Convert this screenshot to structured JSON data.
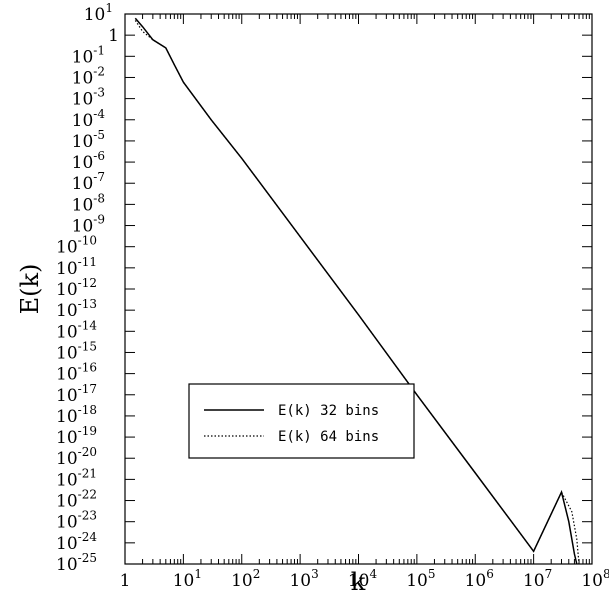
{
  "chart_data": {
    "type": "line",
    "xlabel": "k",
    "ylabel": "E(k)",
    "title": "",
    "xscale": "log",
    "yscale": "log",
    "xlim": [
      1,
      100000000
    ],
    "ylim": [
      1e-25,
      10
    ],
    "x_ticks": [
      {
        "value": 1,
        "base": "1",
        "exp": ""
      },
      {
        "value": 10,
        "base": "10",
        "exp": "1"
      },
      {
        "value": 100,
        "base": "10",
        "exp": "2"
      },
      {
        "value": 1000,
        "base": "10",
        "exp": "3"
      },
      {
        "value": 10000,
        "base": "10",
        "exp": "4"
      },
      {
        "value": 100000,
        "base": "10",
        "exp": "5"
      },
      {
        "value": 1000000,
        "base": "10",
        "exp": "6"
      },
      {
        "value": 10000000,
        "base": "10",
        "exp": "7"
      },
      {
        "value": 100000000,
        "base": "10",
        "exp": "8"
      }
    ],
    "y_ticks": [
      {
        "value": 10,
        "base": "10",
        "exp": "1"
      },
      {
        "value": 1,
        "base": "1",
        "exp": ""
      },
      {
        "value": 0.1,
        "base": "10",
        "exp": "-1"
      },
      {
        "value": 0.01,
        "base": "10",
        "exp": "-2"
      },
      {
        "value": 0.001,
        "base": "10",
        "exp": "-3"
      },
      {
        "value": 0.0001,
        "base": "10",
        "exp": "-4"
      },
      {
        "value": 1e-05,
        "base": "10",
        "exp": "-5"
      },
      {
        "value": 1e-06,
        "base": "10",
        "exp": "-6"
      },
      {
        "value": 1e-07,
        "base": "10",
        "exp": "-7"
      },
      {
        "value": 1e-08,
        "base": "10",
        "exp": "-8"
      },
      {
        "value": 1e-09,
        "base": "10",
        "exp": "-9"
      },
      {
        "value": 1e-10,
        "base": "10",
        "exp": "-10"
      },
      {
        "value": 1e-11,
        "base": "10",
        "exp": "-11"
      },
      {
        "value": 1e-12,
        "base": "10",
        "exp": "-12"
      },
      {
        "value": 1e-13,
        "base": "10",
        "exp": "-13"
      },
      {
        "value": 1e-14,
        "base": "10",
        "exp": "-14"
      },
      {
        "value": 1e-15,
        "base": "10",
        "exp": "-15"
      },
      {
        "value": 1e-16,
        "base": "10",
        "exp": "-16"
      },
      {
        "value": 1e-17,
        "base": "10",
        "exp": "-17"
      },
      {
        "value": 1e-18,
        "base": "10",
        "exp": "-18"
      },
      {
        "value": 1e-19,
        "base": "10",
        "exp": "-19"
      },
      {
        "value": 1e-20,
        "base": "10",
        "exp": "-20"
      },
      {
        "value": 1e-21,
        "base": "10",
        "exp": "-21"
      },
      {
        "value": 1e-22,
        "base": "10",
        "exp": "-22"
      },
      {
        "value": 1e-23,
        "base": "10",
        "exp": "-23"
      },
      {
        "value": 1e-24,
        "base": "10",
        "exp": "-24"
      },
      {
        "value": 1e-25,
        "base": "10",
        "exp": "-25"
      }
    ],
    "grid": false,
    "legend_position": "lower-left",
    "series": [
      {
        "name": "E(k) 32 bins",
        "style": "solid",
        "points": [
          [
            1.5,
            6.3
          ],
          [
            2,
            2.5
          ],
          [
            3,
            0.6
          ],
          [
            5,
            0.25
          ],
          [
            7,
            0.04
          ],
          [
            10,
            0.006
          ],
          [
            30,
            0.0001
          ],
          [
            100,
            1.5e-06
          ],
          [
            1000,
            3e-10
          ],
          [
            10000,
            6e-14
          ],
          [
            100000,
            1e-17
          ],
          [
            1000000,
            2e-21
          ],
          [
            10000000,
            4e-25
          ],
          [
            30000000,
            2.5e-22
          ],
          [
            40000000,
            1e-23
          ],
          [
            50000000,
            3e-25
          ],
          [
            55000000,
            1e-25
          ]
        ]
      },
      {
        "name": "E(k) 64 bins",
        "style": "dotted",
        "points": [
          [
            1.5,
            5
          ],
          [
            2,
            1.5
          ],
          [
            3,
            0.6
          ],
          [
            5,
            0.25
          ],
          [
            7,
            0.04
          ],
          [
            10,
            0.006
          ],
          [
            30,
            0.0001
          ],
          [
            100,
            1.5e-06
          ],
          [
            1000,
            3e-10
          ],
          [
            10000,
            6e-14
          ],
          [
            100000,
            1e-17
          ],
          [
            1000000,
            2e-21
          ],
          [
            10000000,
            4e-25
          ],
          [
            30000000,
            2.5e-22
          ],
          [
            45000000,
            3e-23
          ],
          [
            55000000,
            1.5e-24
          ],
          [
            60000000,
            1e-25
          ]
        ]
      }
    ]
  }
}
